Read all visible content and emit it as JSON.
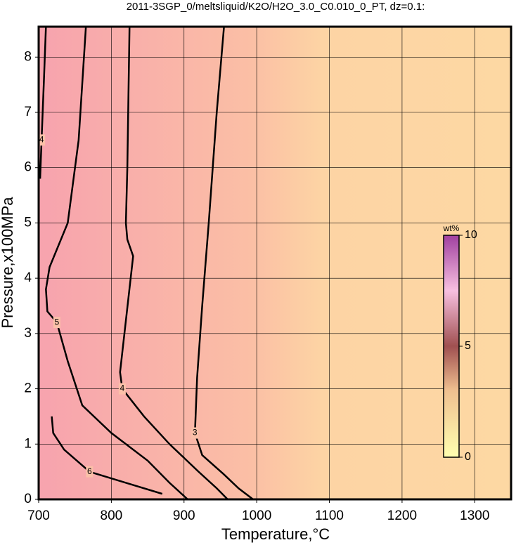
{
  "chart_data": {
    "type": "contour",
    "title": "2011-3SGP_0/meltsliquid/K2O/H2O_3.0_C0.010_0_PT, dz=0.1:",
    "x_label": "Temperature,°C",
    "y_label": "Pressure,x100MPa",
    "xlim": [
      700,
      1350
    ],
    "ylim": [
      0,
      8.55
    ],
    "xticks": [
      700,
      800,
      900,
      1000,
      1100,
      1200,
      1300
    ],
    "yticks": [
      0,
      1,
      2,
      3,
      4,
      5,
      6,
      7,
      8
    ],
    "grid": true,
    "colorbar": {
      "label": "wt%",
      "lim": [
        0,
        10
      ],
      "ticks": [
        0,
        5,
        10
      ]
    },
    "contours": [
      {
        "level": 3,
        "x": [
          955,
          945,
          934,
          925,
          918,
          915,
          925,
          955,
          975,
          995
        ],
        "y": [
          8.55,
          7,
          5,
          3.5,
          2.2,
          1.2,
          0.8,
          0.45,
          0.2,
          0
        ]
      },
      {
        "level": 4,
        "x": [
          825,
          822,
          820,
          822,
          830,
          812,
          815,
          845,
          880,
          920,
          945,
          960
        ],
        "y": [
          8.55,
          6,
          5,
          4.7,
          4.4,
          2.3,
          2,
          1.5,
          1,
          0.5,
          0.2,
          0
        ]
      },
      {
        "level": 5,
        "x": [
          765,
          755,
          740,
          715,
          710,
          712,
          725,
          740,
          760,
          800,
          850,
          880,
          905
        ],
        "y": [
          8.55,
          6.5,
          5,
          4.2,
          3.8,
          3.4,
          3.2,
          2.5,
          1.7,
          1.2,
          0.7,
          0.3,
          0
        ]
      },
      {
        "level": 4,
        "x": [
          710,
          707,
          704,
          702
        ],
        "y": [
          8.55,
          7.5,
          6.5,
          5.8
        ]
      },
      {
        "level": 6,
        "x": [
          718,
          720,
          735,
          770,
          820,
          870
        ],
        "y": [
          1.5,
          1.2,
          0.9,
          0.5,
          0.3,
          0.1
        ]
      }
    ]
  }
}
